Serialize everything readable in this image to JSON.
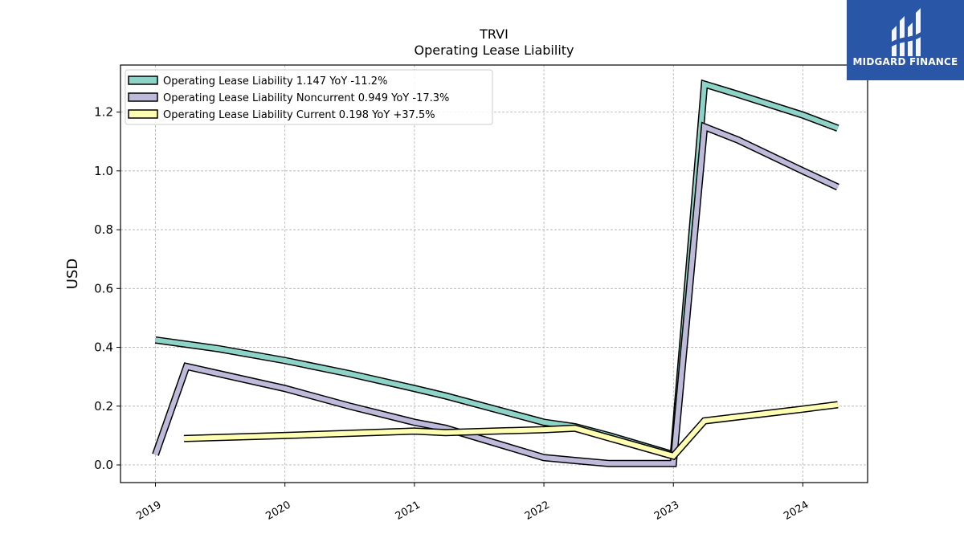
{
  "brand": {
    "name": "MIDGARD FINANCE",
    "bg_color": "#2a56a8"
  },
  "chart_data": {
    "type": "line",
    "title": "TRVI",
    "subtitle": "Operating Lease Liability",
    "ylabel": "USD",
    "xlabel": "",
    "ylim": [
      -0.06,
      1.36
    ],
    "xlim": [
      2018.73,
      2024.5
    ],
    "yticks": [
      0.0,
      0.2,
      0.4,
      0.6,
      0.8,
      1.0,
      1.2
    ],
    "ytick_labels": [
      "0.0",
      "0.2",
      "0.4",
      "0.6",
      "0.8",
      "1.0",
      "1.2"
    ],
    "xticks": [
      2019,
      2020,
      2021,
      2022,
      2023,
      2024
    ],
    "xtick_labels": [
      "2019",
      "2020",
      "2021",
      "2022",
      "2023",
      "2024"
    ],
    "grid": true,
    "legend_position": "top-left",
    "series": [
      {
        "name": "Operating Lease Liability",
        "legend_label": "Operating Lease Liability  1.147 YoY -11.2%",
        "color": "#8dd3c7",
        "x": [
          2019.0,
          2019.49,
          2020.0,
          2020.5,
          2021.0,
          2021.24,
          2022.0,
          2022.24,
          2022.5,
          2023.0,
          2023.24,
          2023.5,
          2024.0,
          2024.27
        ],
        "y": [
          0.425,
          0.395,
          0.355,
          0.31,
          0.26,
          0.235,
          0.145,
          0.13,
          0.1,
          0.035,
          1.295,
          1.26,
          1.19,
          1.145
        ]
      },
      {
        "name": "Operating Lease Liability Noncurrent",
        "legend_label": "Operating Lease Liability Noncurrent  0.949 YoY -17.3%",
        "color": "#bebada",
        "x": [
          2019.0,
          2019.24,
          2020.0,
          2020.5,
          2021.0,
          2021.24,
          2022.0,
          2022.24,
          2022.5,
          2023.0,
          2023.24,
          2023.5,
          2024.0,
          2024.27
        ],
        "y": [
          0.035,
          0.335,
          0.26,
          0.2,
          0.145,
          0.125,
          0.025,
          0.015,
          0.005,
          0.005,
          1.15,
          1.105,
          1.0,
          0.945
        ]
      },
      {
        "name": "Operating Lease Liability Current",
        "legend_label": "Operating Lease Liability Current  0.198 YoY +37.5%",
        "color": "#ffffb3",
        "x": [
          2019.22,
          2020.0,
          2021.0,
          2021.24,
          2022.0,
          2022.24,
          2023.0,
          2023.24,
          2024.0,
          2024.27
        ],
        "y": [
          0.09,
          0.1,
          0.115,
          0.11,
          0.12,
          0.125,
          0.03,
          0.15,
          0.19,
          0.205
        ]
      }
    ]
  }
}
